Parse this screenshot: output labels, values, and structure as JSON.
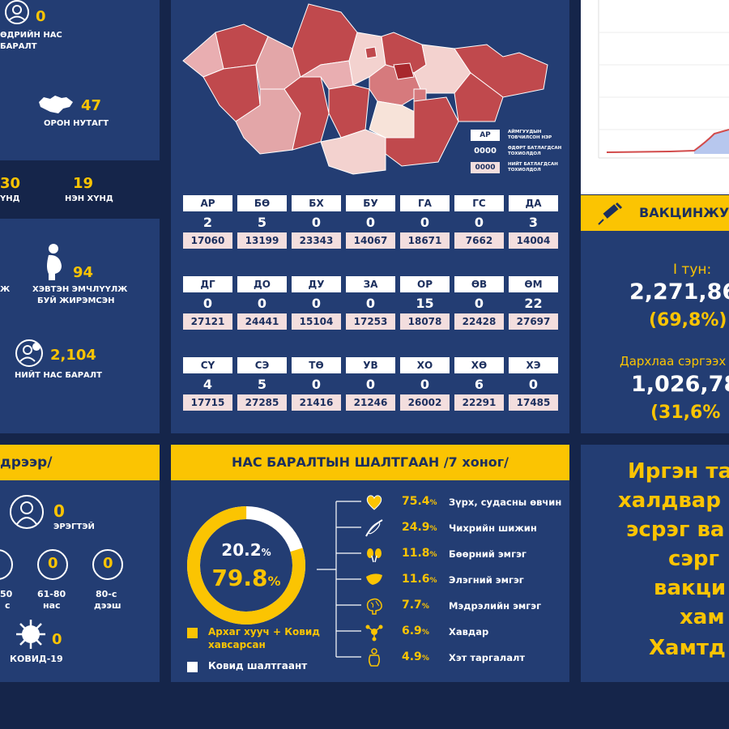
{
  "left_top": {
    "deaths_num": "0",
    "deaths_label_1": "ӨДРИЙН НАС",
    "deaths_label_2": "БАРАЛТ",
    "regions_num": "47",
    "regions_label": "ОРОН НУТАГТ",
    "severe_num": "30",
    "severe_label": "ҮНД",
    "critical_num": "19",
    "critical_label": "НЭН ХҮНД",
    "pregnant_num": "94",
    "pregnant_label_1": "ХЭВТЭН ЭМЧЛҮҮЛЖ",
    "pregnant_label_2": "БУЙ ЖИРЭМСЭН",
    "pregnant_left_label": "Ж",
    "total_deaths_num": "2,104",
    "total_deaths_label": "НИЙТ НАС БАРАЛТ"
  },
  "map": {
    "legend": [
      {
        "box": "АР",
        "text_1": "АЙМГУУДЫН",
        "text_2": "ТОВЧИЛСОН НЭР"
      },
      {
        "box": "0000",
        "text_1": "ӨДӨРТ БАТЛАГДСАН",
        "text_2": "ТОХИОЛДОЛ"
      },
      {
        "box": "0000",
        "text_1": "НИЙТ БАТЛАГДСАН",
        "text_2": "ТОХИОЛДОЛ"
      }
    ]
  },
  "provinces": [
    {
      "code": "АР",
      "daily": "2",
      "total": "17060"
    },
    {
      "code": "БӨ",
      "daily": "5",
      "total": "13199"
    },
    {
      "code": "БХ",
      "daily": "0",
      "total": "23343"
    },
    {
      "code": "БУ",
      "daily": "0",
      "total": "14067"
    },
    {
      "code": "ГА",
      "daily": "0",
      "total": "18671"
    },
    {
      "code": "ГС",
      "daily": "0",
      "total": "7662"
    },
    {
      "code": "ДА",
      "daily": "3",
      "total": "14004"
    },
    {
      "code": "ДГ",
      "daily": "0",
      "total": "27121"
    },
    {
      "code": "ДО",
      "daily": "0",
      "total": "24441"
    },
    {
      "code": "ДУ",
      "daily": "0",
      "total": "15104"
    },
    {
      "code": "ЗА",
      "daily": "0",
      "total": "17253"
    },
    {
      "code": "ОР",
      "daily": "15",
      "total": "18078"
    },
    {
      "code": "ӨВ",
      "daily": "0",
      "total": "22428"
    },
    {
      "code": "ӨМ",
      "daily": "22",
      "total": "27697"
    },
    {
      "code": "СҮ",
      "daily": "4",
      "total": "17715"
    },
    {
      "code": "СЭ",
      "daily": "5",
      "total": "27285"
    },
    {
      "code": "ТӨ",
      "daily": "0",
      "total": "21416"
    },
    {
      "code": "УВ",
      "daily": "0",
      "total": "21246"
    },
    {
      "code": "ХО",
      "daily": "0",
      "total": "26002"
    },
    {
      "code": "ХӨ",
      "daily": "6",
      "total": "22291"
    },
    {
      "code": "ХЭ",
      "daily": "0",
      "total": "17485"
    }
  ],
  "vaccine": {
    "header": "ВАКЦИНЖУ",
    "dose1_label": "I тун:",
    "dose1_num": "2,271,86",
    "dose1_pct": "(69,8%)",
    "booster_label": "Дархлаа сэргээх",
    "booster_num": "1,026,78",
    "booster_pct": "(31,6%"
  },
  "gender": {
    "header": "дрээр/",
    "male_num": "0",
    "male_label": "ЭРЭГТЭЙ",
    "age1_num": "0",
    "age1_label": "50",
    "age1_label2": "с",
    "age2_num": "0",
    "age2_label": "61-80",
    "age2_label2": "нас",
    "age3_num": "0",
    "age3_label": "80-с",
    "age3_label2": "дээш",
    "covid_num": "0",
    "covid_label": "КОВИД-19"
  },
  "causes": {
    "header": "НАС БАРАЛТЫН ШАЛТГААН /7 хоног/",
    "donut_small": "20.2",
    "donut_big": "79.8",
    "pct_sign": "%",
    "legend_yellow_1": "Архаг хууч + Ковид",
    "legend_yellow_2": "хавсарсан",
    "legend_white": "Ковид шалтгаант",
    "items": [
      {
        "pct": "75.4",
        "label": "Зүрх, судасны өвчин",
        "icon": "heart-icon"
      },
      {
        "pct": "24.9",
        "label": "Чихрийн шижин",
        "icon": "syringe-pen-icon"
      },
      {
        "pct": "11.8",
        "label": "Бөөрний эмгэг",
        "icon": "kidney-icon"
      },
      {
        "pct": "11.6",
        "label": "Элэгний эмгэг",
        "icon": "liver-icon"
      },
      {
        "pct": "7.7",
        "label": "Мэдрэлийн эмгэг",
        "icon": "brain-icon"
      },
      {
        "pct": "6.9",
        "label": "Хавдар",
        "icon": "tumor-icon"
      },
      {
        "pct": "4.9",
        "label": "Хэт таргалалт",
        "icon": "obesity-icon"
      }
    ],
    "data": {
      "donut": [
        {
          "name": "Архаг хууч + Ковид хавсарсан",
          "value": 79.8,
          "color": "#fbc402"
        },
        {
          "name": "Ковид шалтгаант",
          "value": 20.2,
          "color": "#ffffff"
        }
      ]
    }
  },
  "message": {
    "line1": "Иргэн та",
    "line2": "халдвар",
    "line3": "эсрэг ва",
    "line4": "сэрг",
    "line5": "вакци",
    "line6": "хам",
    "line7": "Хамтд"
  },
  "colors": {
    "bg_dark": "#15254a",
    "panel": "#233d73",
    "accent": "#fbc402",
    "map_dark": "#c0494d",
    "map_mid": "#e3a6a8",
    "map_light": "#f7e3d9"
  }
}
